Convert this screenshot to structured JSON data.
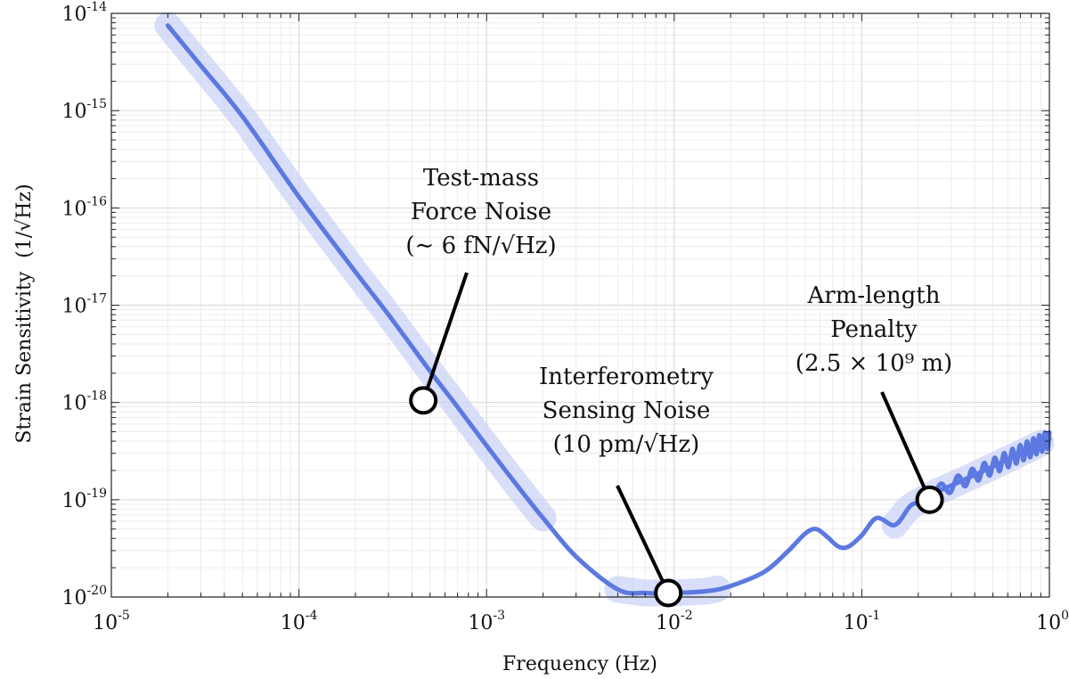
{
  "chart_data": {
    "type": "line",
    "title": "",
    "xlabel": "Frequency (Hz)",
    "ylabel": "Strain Sensitivity",
    "ylabel_unit": "(1/√Hz)",
    "x_scale": "log",
    "y_scale": "log",
    "xlim": [
      1e-05,
      1
    ],
    "ylim": [
      1e-20,
      1e-14
    ],
    "x_ticks": [
      {
        "value": 1e-05,
        "base": "10",
        "exp": "-5"
      },
      {
        "value": 0.0001,
        "base": "10",
        "exp": "-4"
      },
      {
        "value": 0.001,
        "base": "10",
        "exp": "-3"
      },
      {
        "value": 0.01,
        "base": "10",
        "exp": "-2"
      },
      {
        "value": 0.1,
        "base": "10",
        "exp": "-1"
      },
      {
        "value": 1,
        "base": "10",
        "exp": "0"
      }
    ],
    "y_ticks": [
      {
        "value": 1e-14,
        "base": "10",
        "exp": "-14"
      },
      {
        "value": 1e-15,
        "base": "10",
        "exp": "-15"
      },
      {
        "value": 1e-16,
        "base": "10",
        "exp": "-16"
      },
      {
        "value": 1e-17,
        "base": "10",
        "exp": "-17"
      },
      {
        "value": 1e-18,
        "base": "10",
        "exp": "-18"
      },
      {
        "value": 1e-19,
        "base": "10",
        "exp": "-19"
      },
      {
        "value": 1e-20,
        "base": "10",
        "exp": "-20"
      }
    ],
    "grid": true,
    "series": [
      {
        "color": "#5b79e0",
        "x": [
          2e-05,
          3e-05,
          5e-05,
          0.0001,
          0.0002,
          0.0003,
          0.0005,
          0.0007,
          0.001,
          0.0015,
          0.002,
          0.003,
          0.005,
          0.007,
          0.01,
          0.015,
          0.02,
          0.03,
          0.04,
          0.05,
          0.057,
          0.065,
          0.075,
          0.085,
          0.1,
          0.12,
          0.15,
          0.18,
          0.2,
          0.25,
          0.3,
          0.4,
          0.5,
          0.6,
          0.7,
          0.8,
          1.0
        ],
        "y": [
          7.5e-15,
          2.9e-15,
          8.7e-16,
          1.3e-16,
          2.2e-17,
          8e-18,
          2.1e-18,
          9e-19,
          3.6e-19,
          1.3e-19,
          6.5e-20,
          2.6e-20,
          1.2e-20,
          1.1e-20,
          1.1e-20,
          1.15e-20,
          1.3e-20,
          1.8e-20,
          2.9e-20,
          4.5e-20,
          5e-20,
          4.2e-20,
          3.3e-20,
          3.3e-20,
          4.3e-20,
          6.5e-20,
          5.5e-20,
          8.5e-20,
          9.5e-20,
          1.2e-19,
          1.4e-19,
          1.8e-19,
          2.2e-19,
          2.6e-19,
          3e-19,
          3.4e-19,
          4.2e-19
        ]
      }
    ],
    "highlight_bands": [
      {
        "name": "force-noise-band",
        "x": [
          2e-05,
          0.002
        ]
      },
      {
        "name": "sensing-noise-band",
        "x": [
          0.005,
          0.017
        ]
      },
      {
        "name": "arm-length-band",
        "x": [
          0.15,
          0.9
        ]
      }
    ],
    "annotations": [
      {
        "name": "force-noise",
        "lines": [
          "Test-mass",
          "Force Noise",
          "(∼ 6 fN/√Hz)"
        ],
        "point": {
          "x": 0.00046,
          "y": 1.05e-18
        }
      },
      {
        "name": "sensing-noise",
        "lines": [
          "Interferometry",
          "Sensing Noise",
          "(10 pm/√Hz)"
        ],
        "point": {
          "x": 0.0093,
          "y": 1.1e-20
        }
      },
      {
        "name": "arm-length",
        "lines": [
          "Arm-length",
          "Penalty",
          "(2.5 × 10⁹ m)"
        ],
        "point": {
          "x": 0.23,
          "y": 1e-19
        }
      }
    ]
  }
}
